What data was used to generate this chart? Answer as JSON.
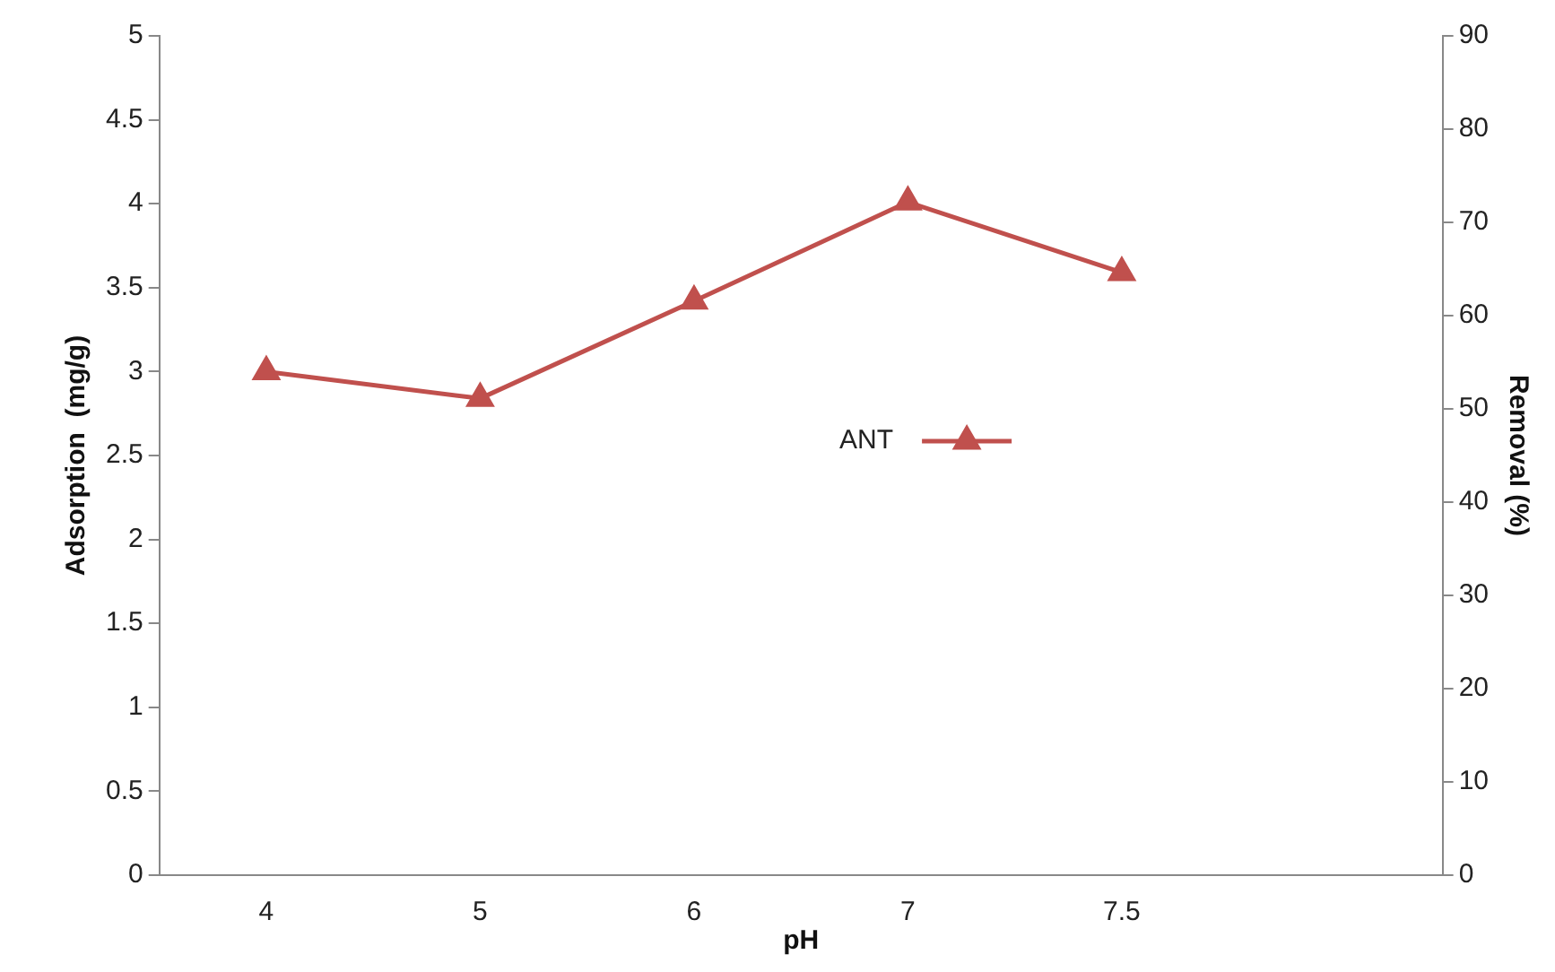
{
  "chart_data": {
    "type": "line",
    "xlabel": "pH",
    "ylabel": "Adsorption  (mg/g)",
    "y2label": "Removal (%)",
    "categories": [
      "4",
      "5",
      "6",
      "7",
      "7.5",
      null
    ],
    "series": [
      {
        "name": "ANT",
        "color": "#c0504d",
        "values": [
          3.0,
          2.84,
          3.42,
          4.01,
          3.59,
          null
        ]
      }
    ],
    "ylim": [
      0,
      5
    ],
    "yticks": [
      0,
      0.5,
      1,
      1.5,
      2,
      2.5,
      3,
      3.5,
      4,
      4.5,
      5
    ],
    "y2lim": [
      0,
      90
    ],
    "y2ticks": [
      0,
      10,
      20,
      30,
      40,
      50,
      60,
      70,
      80,
      90
    ],
    "grid": false,
    "legend": "center right",
    "marker": "triangle",
    "line_style": "solid"
  }
}
